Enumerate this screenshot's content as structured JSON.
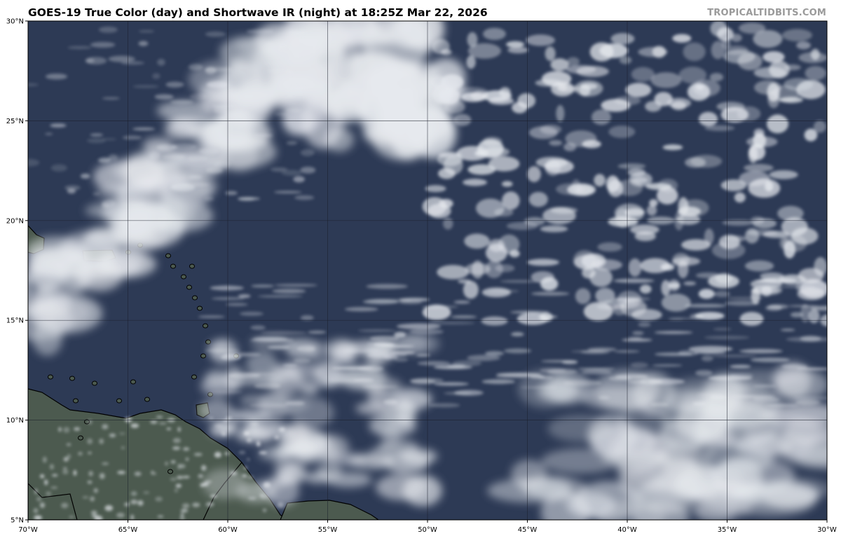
{
  "header": {
    "title": "GOES-19 True Color (day) and Shortwave IR (night) at 18:25Z Mar 22, 2026",
    "watermark": "TROPICALTIDBITS.COM"
  },
  "map": {
    "projection": "equirectangular",
    "lon_range": [
      -70,
      -30
    ],
    "lat_range": [
      5,
      30
    ],
    "gridlines": true,
    "colors": {
      "ocean": "#2d3a55",
      "land": "#4c5a4f",
      "coastline": "#000000",
      "cloud": "#e6e9ee",
      "grid": "#1a1f2a"
    },
    "lat_ticks": [
      {
        "value": 30,
        "label": "30°N"
      },
      {
        "value": 25,
        "label": "25°N"
      },
      {
        "value": 20,
        "label": "20°N"
      },
      {
        "value": 15,
        "label": "15°N"
      },
      {
        "value": 10,
        "label": "10°N"
      },
      {
        "value": 5,
        "label": "5°N"
      }
    ],
    "lon_ticks": [
      {
        "value": -70,
        "label": "70°W"
      },
      {
        "value": -65,
        "label": "65°W"
      },
      {
        "value": -60,
        "label": "60°W"
      },
      {
        "value": -55,
        "label": "55°W"
      },
      {
        "value": -50,
        "label": "50°W"
      },
      {
        "value": -45,
        "label": "45°W"
      },
      {
        "value": -40,
        "label": "40°W"
      },
      {
        "value": -35,
        "label": "35°W"
      },
      {
        "value": -30,
        "label": "30°W"
      }
    ]
  }
}
